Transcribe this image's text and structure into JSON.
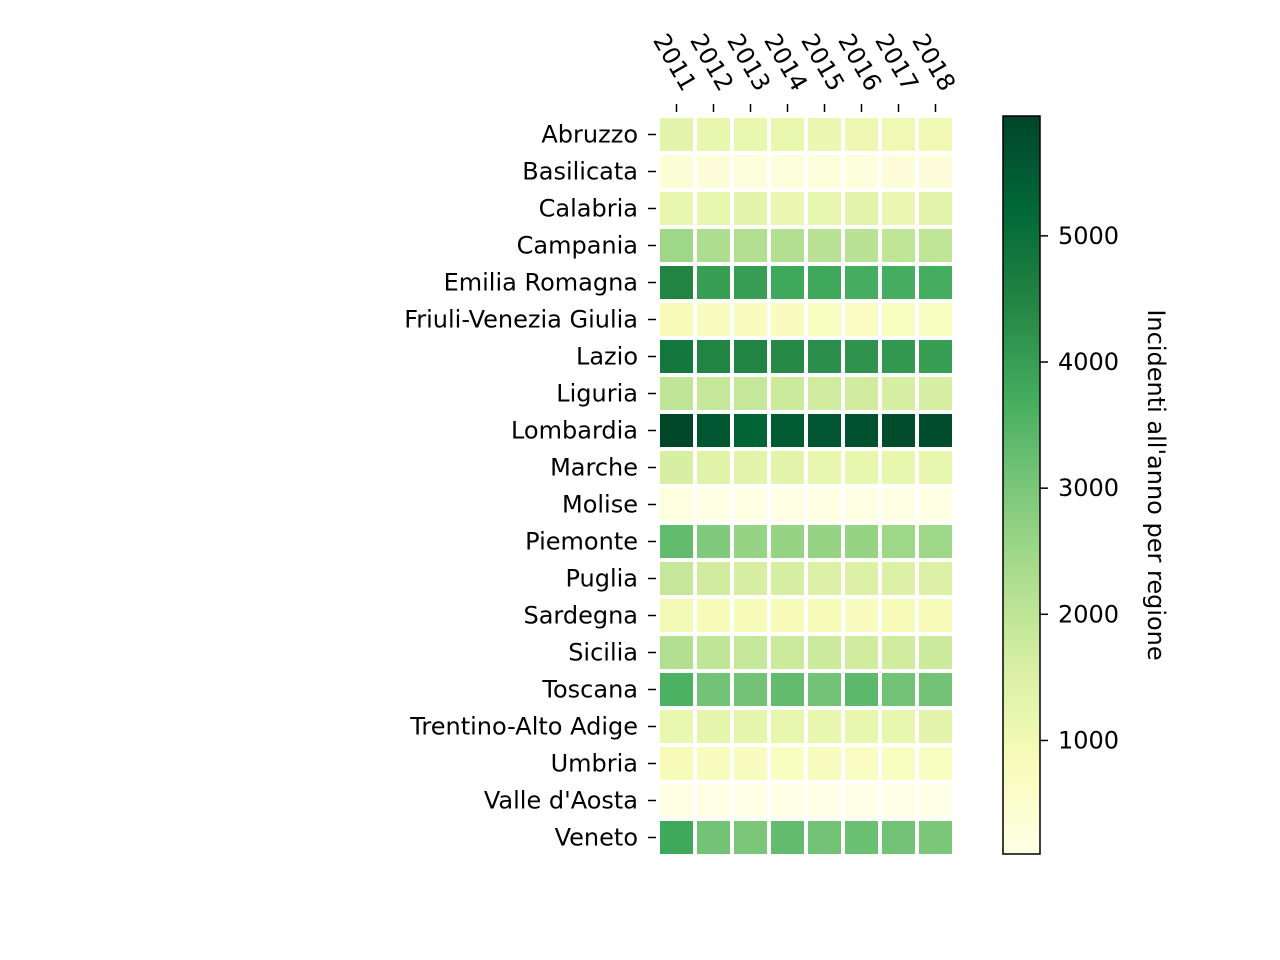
{
  "chart_data": {
    "type": "heatmap",
    "title": "",
    "x": [
      "2011",
      "2012",
      "2013",
      "2014",
      "2015",
      "2016",
      "2017",
      "2018"
    ],
    "y": [
      "Abruzzo",
      "Basilicata",
      "Calabria",
      "Campania",
      "Emilia Romagna",
      "Friuli-Venezia Giulia",
      "Lazio",
      "Liguria",
      "Lombardia",
      "Marche",
      "Molise",
      "Piemonte",
      "Puglia",
      "Sardegna",
      "Sicilia",
      "Toscana",
      "Trentino-Alto Adige",
      "Umbria",
      "Valle d'Aosta",
      "Veneto"
    ],
    "values": [
      [
        1300,
        1200,
        1150,
        1150,
        1100,
        1050,
        1000,
        1000
      ],
      [
        350,
        300,
        250,
        250,
        250,
        250,
        300,
        300
      ],
      [
        1200,
        1200,
        1300,
        1100,
        1200,
        1300,
        1100,
        1300
      ],
      [
        2500,
        2300,
        2200,
        2200,
        2100,
        2100,
        2000,
        2000
      ],
      [
        4500,
        4000,
        4000,
        3800,
        3800,
        3700,
        3700,
        3700
      ],
      [
        850,
        750,
        750,
        750,
        700,
        650,
        700,
        700
      ],
      [
        4800,
        4500,
        4500,
        4400,
        4300,
        4200,
        4100,
        4000
      ],
      [
        2000,
        1900,
        1900,
        1800,
        1700,
        1700,
        1600,
        1600
      ],
      [
        5900,
        5600,
        5300,
        5500,
        5600,
        5700,
        5800,
        5800
      ],
      [
        1600,
        1400,
        1300,
        1300,
        1200,
        1200,
        1200,
        1200
      ],
      [
        200,
        150,
        150,
        150,
        150,
        150,
        150,
        150
      ],
      [
        3300,
        2900,
        2600,
        2600,
        2600,
        2600,
        2500,
        2500
      ],
      [
        1900,
        1700,
        1600,
        1600,
        1500,
        1500,
        1500,
        1500
      ],
      [
        950,
        850,
        850,
        850,
        850,
        750,
        850,
        850
      ],
      [
        2200,
        2000,
        1900,
        1800,
        1800,
        1700,
        1700,
        1800
      ],
      [
        3600,
        3100,
        3100,
        3300,
        3100,
        3400,
        3100,
        3100
      ],
      [
        1150,
        1250,
        1250,
        1200,
        1200,
        1200,
        1200,
        1300
      ],
      [
        850,
        750,
        750,
        700,
        750,
        650,
        700,
        700
      ],
      [
        150,
        100,
        100,
        100,
        100,
        100,
        100,
        100
      ],
      [
        3800,
        3100,
        3000,
        3300,
        3100,
        3200,
        3100,
        3000
      ]
    ],
    "colorbar": {
      "label": "Incidenti all'anno per regione",
      "range": [
        100,
        5950
      ],
      "ticks": [
        "1000",
        "2000",
        "3000",
        "4000",
        "5000"
      ],
      "colormap": [
        "#ffffe5",
        "#f7fcb9",
        "#d9f0a3",
        "#addd8e",
        "#78c679",
        "#41ab5d",
        "#238443",
        "#006837",
        "#004529"
      ]
    },
    "grid": false,
    "legend": "none"
  }
}
